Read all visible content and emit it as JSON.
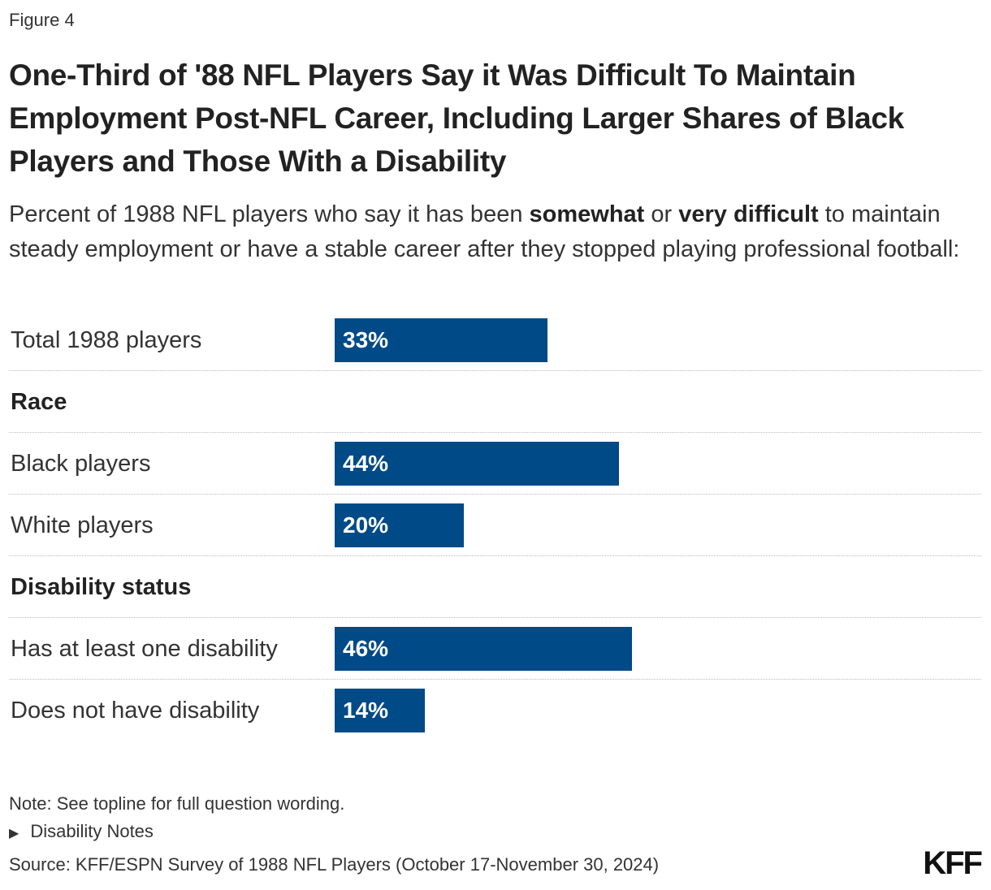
{
  "figure_label": "Figure 4",
  "chart_data": {
    "type": "bar",
    "orientation": "horizontal",
    "title": "One-Third of '88 NFL Players Say it Was Difficult To Maintain Employment Post-NFL Career, Including Larger Shares of Black Players and Those With a Disability",
    "subtitle_parts": {
      "a": "Percent of 1988 NFL players who say it has been ",
      "b": "somewhat",
      "c": " or ",
      "d": "very difficult",
      "e": " to maintain steady employment or have a stable career after they stopped playing professional football:"
    },
    "bar_color": "#004a87",
    "xlim": [
      0,
      100
    ],
    "rows": [
      {
        "type": "bar",
        "label": "Total 1988 players",
        "value": 33,
        "value_label": "33%"
      },
      {
        "type": "header",
        "label": "Race"
      },
      {
        "type": "bar",
        "label": "Black players",
        "value": 44,
        "value_label": "44%"
      },
      {
        "type": "bar",
        "label": "White players",
        "value": 20,
        "value_label": "20%"
      },
      {
        "type": "header",
        "label": "Disability status"
      },
      {
        "type": "bar",
        "label": "Has at least one disability",
        "value": 46,
        "value_label": "46%"
      },
      {
        "type": "bar",
        "label": "Does not have disability",
        "value": 14,
        "value_label": "14%"
      }
    ]
  },
  "footer": {
    "note": "Note: See topline for full question wording.",
    "disability_notes": "Disability Notes",
    "source": "Source: KFF/ESPN Survey of 1988 NFL Players (October 17-November 30, 2024)",
    "logo": "KFF"
  }
}
